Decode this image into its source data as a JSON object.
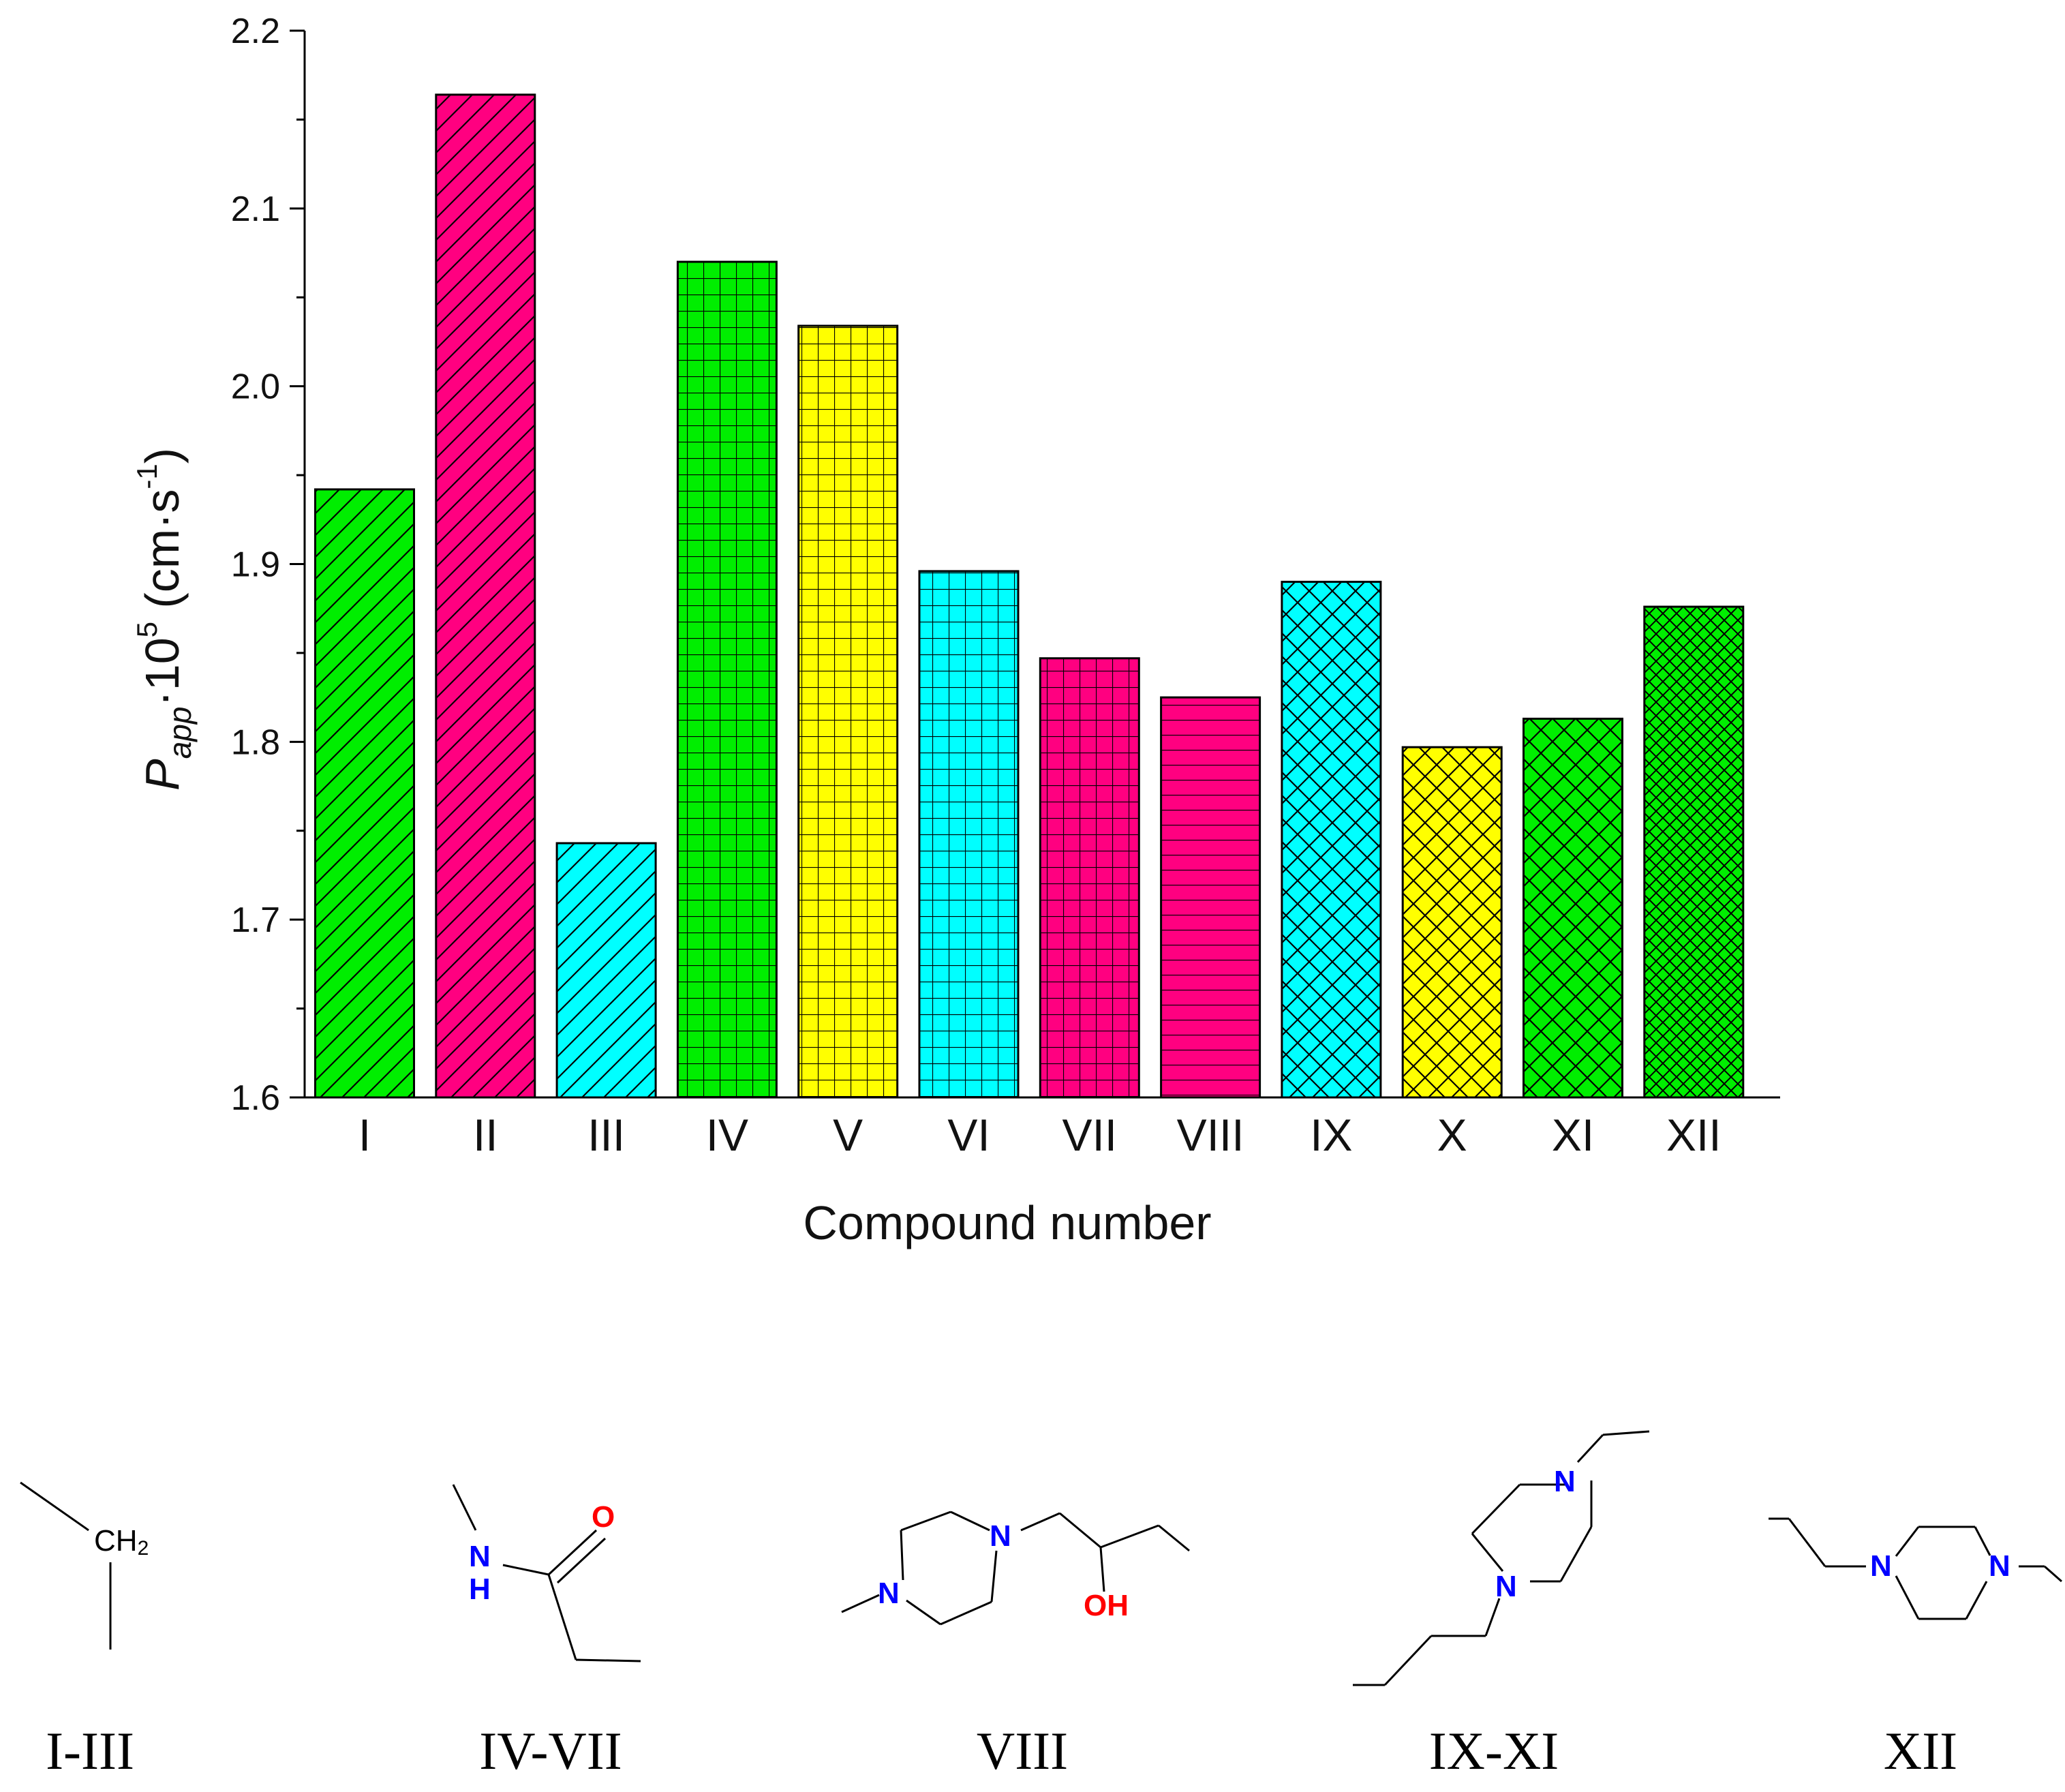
{
  "chart_data": {
    "type": "bar",
    "title": "",
    "xlabel": "Compound number",
    "ylabel": {
      "main": "P",
      "sub": "app",
      "mid": "·10",
      "sup": "5",
      "unit_open": " (cm·s",
      "unit_sup": "-1",
      "unit_close": ")"
    },
    "ylim": [
      1.6,
      2.2
    ],
    "yticks": [
      "1.6",
      "1.7",
      "1.8",
      "1.9",
      "2.0",
      "2.1",
      "2.2"
    ],
    "categories": [
      "I",
      "II",
      "III",
      "IV",
      "V",
      "VI",
      "VII",
      "VIII",
      "IX",
      "X",
      "XI",
      "XII"
    ],
    "values": [
      1.942,
      2.164,
      1.743,
      2.07,
      2.034,
      1.896,
      1.847,
      1.825,
      1.89,
      1.797,
      1.813,
      1.876
    ],
    "colors": [
      "#00ee00",
      "#ff0080",
      "#00ffff",
      "#00ee00",
      "#ffff00",
      "#00ffff",
      "#ff0080",
      "#ff0080",
      "#00ffff",
      "#ffff00",
      "#00ee00",
      "#00ee00"
    ],
    "patterns": [
      "diag",
      "diag",
      "diag",
      "grid",
      "grid",
      "grid",
      "grid",
      "horiz",
      "cross",
      "cross",
      "cross",
      "crossfine"
    ]
  },
  "structures": {
    "captions": [
      "I-III",
      "IV-VII",
      "VIII",
      "IX-XI",
      "XII"
    ],
    "atoms": {
      "ch2": "CH",
      "ch2_sub": "2",
      "o": "O",
      "nh_n": "N",
      "nh_h": "H",
      "n": "N",
      "oh": "OH"
    }
  }
}
